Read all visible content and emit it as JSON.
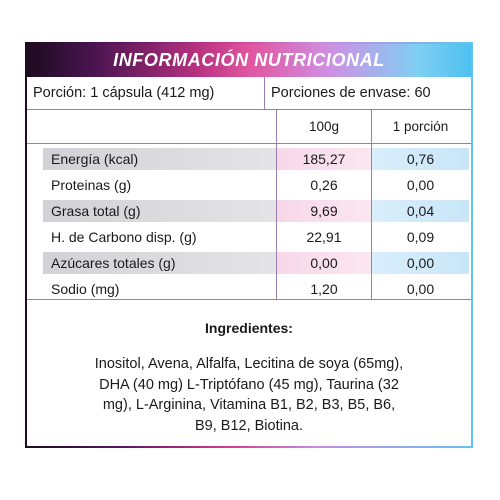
{
  "header": {
    "title": "INFORMACIÓN NUTRICIONAL"
  },
  "serving": {
    "portion": "Porción: 1 cápsula (412 mg)",
    "servings_per_container": "Porciones de envase: 60"
  },
  "table": {
    "columns": [
      "100g",
      "1 porción"
    ],
    "rows": [
      {
        "label": "Energía (kcal)",
        "v100": "185,27",
        "vport": "0,76"
      },
      {
        "label": "Proteinas (g)",
        "v100": "0,26",
        "vport": "0,00"
      },
      {
        "label": "Grasa total (g)",
        "v100": "9,69",
        "vport": "0,04"
      },
      {
        "label": "H. de Carbono disp. (g)",
        "v100": "22,91",
        "vport": "0,09"
      },
      {
        "label": "Azúcares totales (g)",
        "v100": "0,00",
        "vport": "0,00"
      },
      {
        "label": "Sodio (mg)",
        "v100": "1,20",
        "vport": "0,00"
      }
    ]
  },
  "ingredients": {
    "title": "Ingredientes:",
    "lines": [
      "Inositol, Avena, Alfalfa, Lecitina de soya (65mg),",
      "DHA (40 mg) L-Triptófano (45 mg), Taurina (32",
      "mg), L-Arginina, Vitamina B1, B2, B3, B5, B6,",
      "B9, B12, Biotina."
    ]
  },
  "colors": {
    "gradient_start": "#1c0b1f",
    "gradient_pink": "#e0559f",
    "gradient_end": "#4ec0f0",
    "border": "#9a7fae"
  }
}
